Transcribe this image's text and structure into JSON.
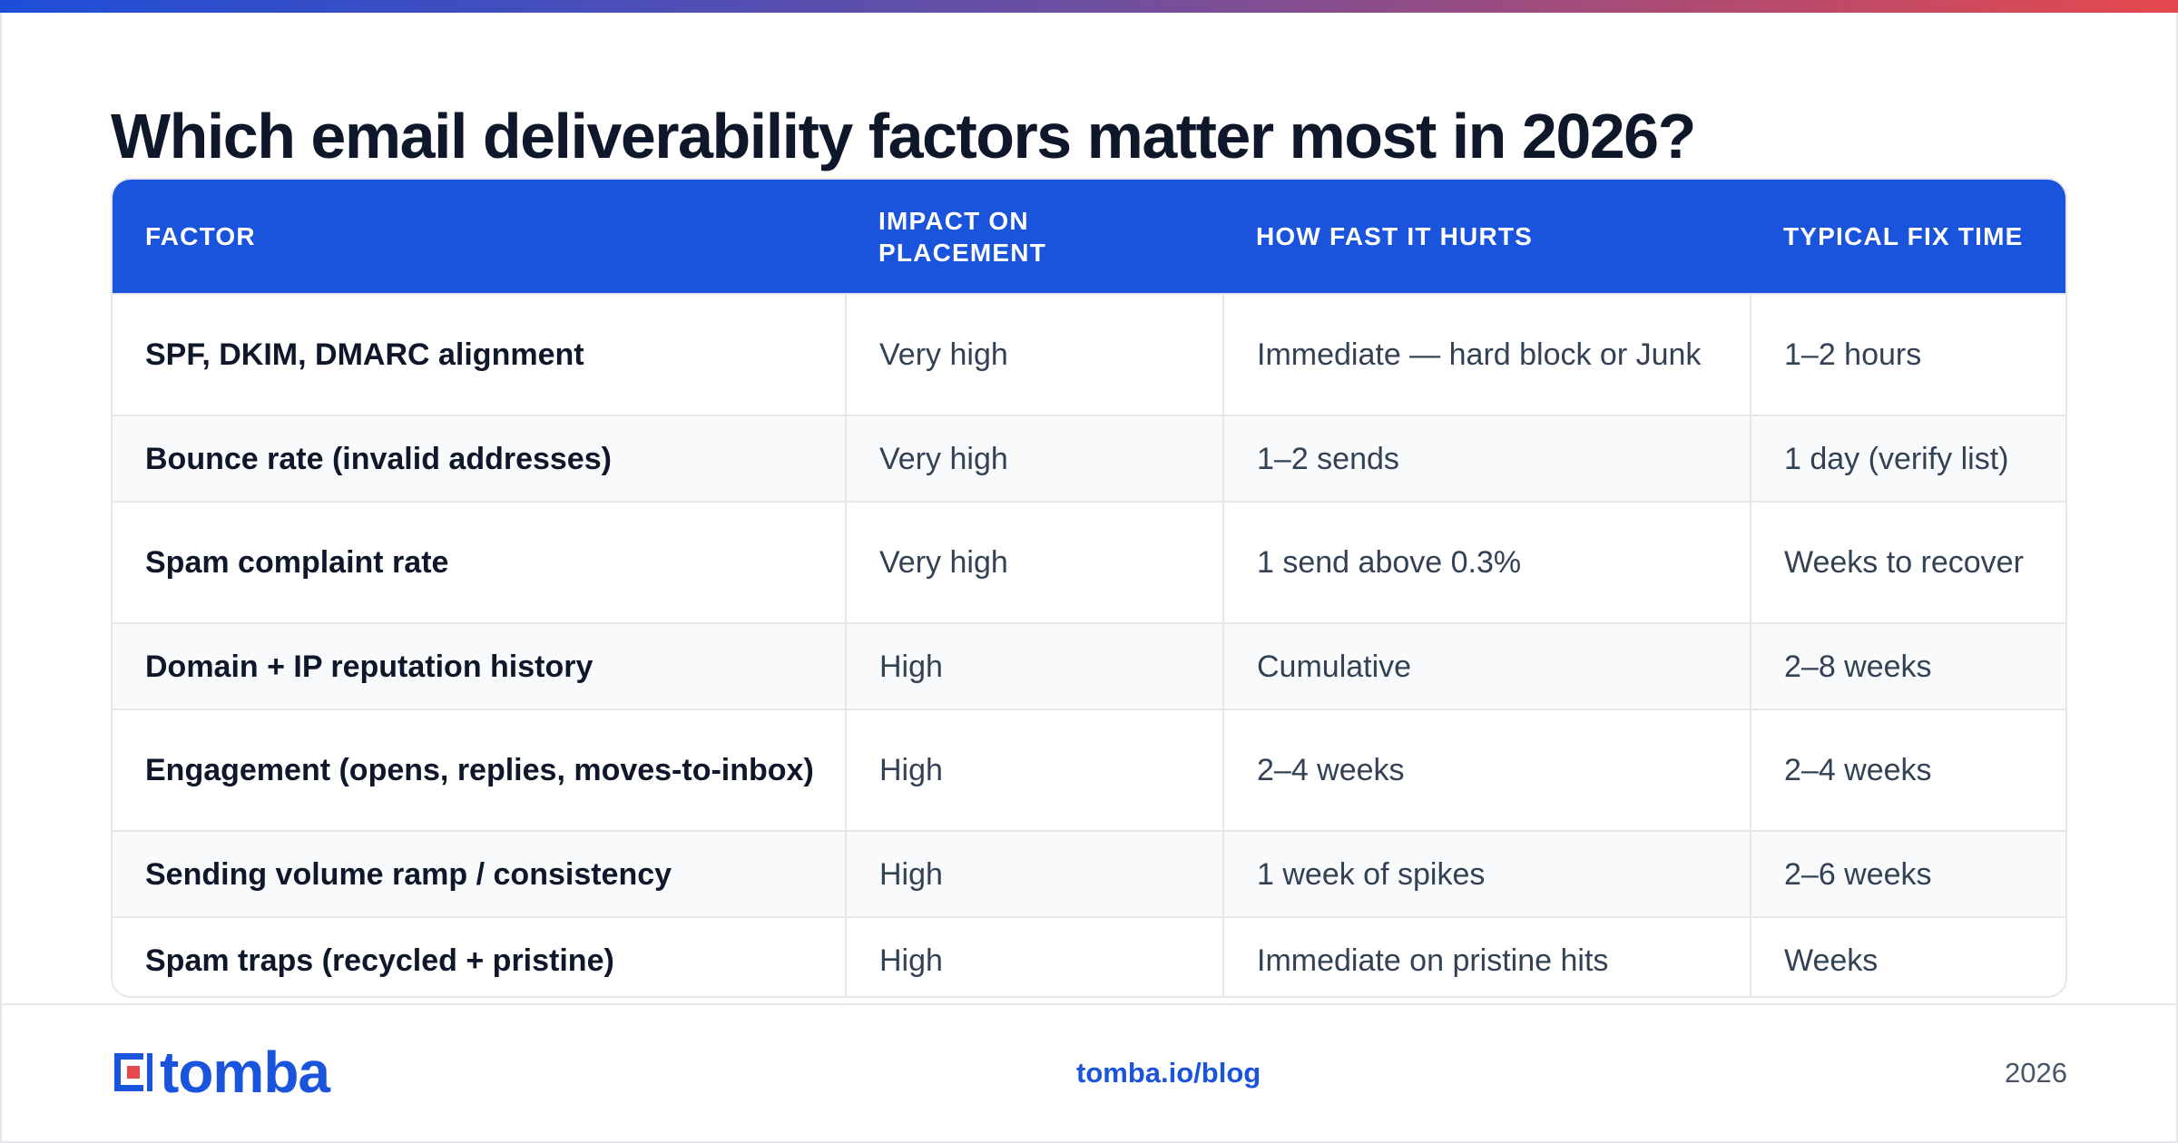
{
  "title": "Which email deliverability factors matter most in 2026?",
  "colors": {
    "accent": "#1a54dc",
    "gradient_start": "#1d4ed8",
    "gradient_end": "#e5484d",
    "logo_red": "#e5484d"
  },
  "table": {
    "headers": [
      "FACTOR",
      "IMPACT ON PLACEMENT",
      "HOW FAST IT HURTS",
      "TYPICAL FIX TIME"
    ],
    "rows": [
      [
        "SPF, DKIM, DMARC alignment",
        "Very high",
        "Immediate — hard block or Junk",
        "1–2 hours"
      ],
      [
        "Bounce rate (invalid addresses)",
        "Very high",
        "1–2 sends",
        "1 day (verify list)"
      ],
      [
        "Spam complaint rate",
        "Very high",
        "1 send above 0.3%",
        "Weeks to recover"
      ],
      [
        "Domain + IP reputation history",
        "High",
        "Cumulative",
        "2–8 weeks"
      ],
      [
        "Engagement (opens, replies, moves-to-inbox)",
        "High",
        "2–4 weeks",
        "2–4 weeks"
      ],
      [
        "Sending volume ramp / consistency",
        "High",
        "1 week of spikes",
        "2–6 weeks"
      ],
      [
        "Spam traps (recycled + pristine)",
        "High",
        "Immediate on pristine hits",
        "Weeks"
      ]
    ]
  },
  "footer": {
    "logo_text": "tomba",
    "logo_icon": "tomba-logo-icon",
    "link": "tomba.io/blog",
    "year": "2026"
  }
}
